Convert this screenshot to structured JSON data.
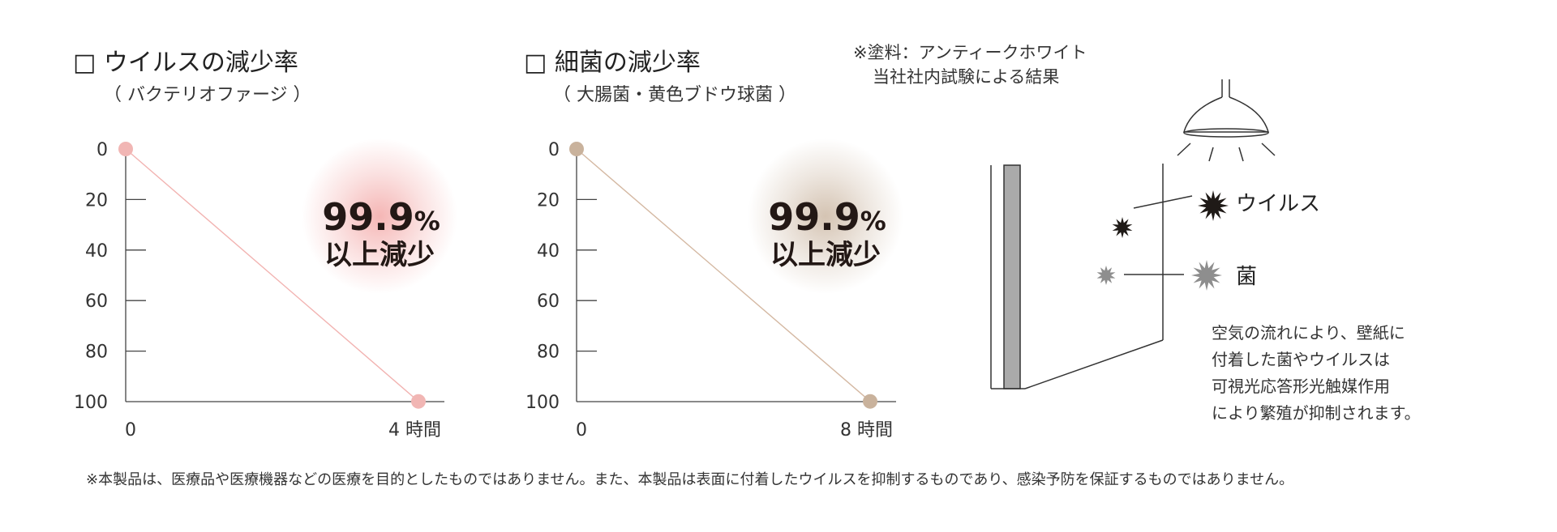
{
  "charts": [
    {
      "title_box": "□",
      "title": "ウイルスの減少率",
      "subtitle": "（ バクテリオファージ ）",
      "badge_value": "99.9",
      "badge_unit": "%",
      "badge_label": "以上減少",
      "x_end_label": "4 時間",
      "colors": {
        "point": "#f1b6b4",
        "line": "#f2b3b1",
        "glow": "#f3a9a8"
      }
    },
    {
      "title_box": "□",
      "title": "細菌の減少率",
      "subtitle": "（ 大腸菌・黄色ブドウ球菌 ）",
      "badge_value": "99.9",
      "badge_unit": "%",
      "badge_label": "以上減少",
      "x_end_label": "8 時間",
      "colors": {
        "point": "#c9b29c",
        "line": "#d4b8a2",
        "glow": "#cdb9a5"
      }
    }
  ],
  "chart_data": [
    {
      "type": "line",
      "x": [
        0,
        4
      ],
      "y": [
        0,
        99.9
      ],
      "x_tick_labels": [
        "0",
        "4 時間"
      ],
      "y_ticks": [
        0,
        20,
        40,
        60,
        80,
        100
      ],
      "y_tick_labels": [
        "0",
        "20",
        "40",
        "60",
        "80",
        "100"
      ],
      "ylim": [
        0,
        100
      ],
      "y_inverted": true,
      "grid": false,
      "annotation": "99.9% 以上減少"
    },
    {
      "type": "line",
      "x": [
        0,
        8
      ],
      "y": [
        0,
        99.9
      ],
      "x_tick_labels": [
        "0",
        "8 時間"
      ],
      "y_ticks": [
        0,
        20,
        40,
        60,
        80,
        100
      ],
      "y_tick_labels": [
        "0",
        "20",
        "40",
        "60",
        "80",
        "100"
      ],
      "ylim": [
        0,
        100
      ],
      "y_inverted": true,
      "grid": false,
      "annotation": "99.9% 以上減少"
    }
  ],
  "note_top": {
    "line1": "※塗料：アンティークホワイト",
    "line2": "当社社内試験による結果"
  },
  "diagram": {
    "virus_label": "ウイルス",
    "bacteria_label": "菌",
    "virus_color": "#1f1a17",
    "bacteria_color": "#8e8e8e",
    "description": [
      "空気の流れにより、壁紙に",
      "付着した菌やウイルスは",
      "可視光応答形光触媒作用",
      "により繁殖が抑制されます。"
    ]
  },
  "footer": "※本製品は、医療品や医療機器などの医療を目的としたものではありません。また、本製品は表面に付着したウイルスを抑制するものであり、感染予防を保証するものではありません。"
}
